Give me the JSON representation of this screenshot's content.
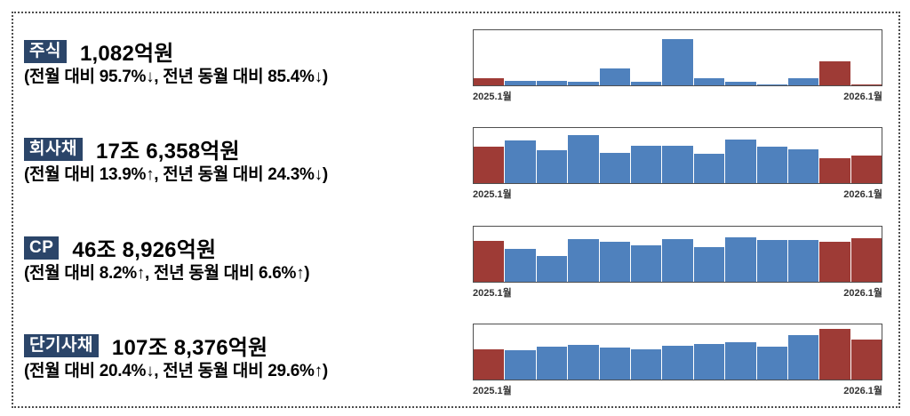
{
  "colors": {
    "badge_bg": "#2b4569",
    "badge_text": "#ffffff",
    "bar_blue": "#4f81bd",
    "bar_red": "#9e3b36",
    "chart_border": "#4f4f4f",
    "frame_border": "#4d4d4d",
    "text": "#000000",
    "axis_label": "#333333"
  },
  "sections": [
    {
      "badge": "주식",
      "amount": "1,082억원",
      "comparison": "(전월 대비 95.7%↓, 전년 동월 대비 85.4%↓)"
    },
    {
      "badge": "회사채",
      "amount": "17조 6,358억원",
      "comparison": "(전월 대비 13.9%↑, 전년 동월 대비 24.3%↓)"
    },
    {
      "badge": "CP",
      "amount": "46조 8,926억원",
      "comparison": "(전월 대비 8.2%↑, 전년 동월 대비 6.6%↑)"
    },
    {
      "badge": "단기사채",
      "amount": "107조 8,376억원",
      "comparison": "(전월 대비 20.4%↓, 전년 동월 대비 29.6%↑)"
    }
  ],
  "chart_data": [
    {
      "type": "bar",
      "x_start_label": "2025.1월",
      "x_end_label": "2026.1월",
      "categories": [
        "2025.1",
        "2025.2",
        "2025.3",
        "2025.4",
        "2025.5",
        "2025.6",
        "2025.7",
        "2025.8",
        "2025.9",
        "2025.10",
        "2025.11",
        "2025.12",
        "2026.1"
      ],
      "values": [
        13,
        8,
        8,
        6,
        31,
        6,
        84,
        13,
        6,
        2,
        13,
        44,
        2
      ],
      "y_axis": "none shown; values are relative bar heights in % of plot height",
      "bar_colors": [
        "red",
        "blue",
        "blue",
        "blue",
        "blue",
        "blue",
        "blue",
        "blue",
        "blue",
        "blue",
        "blue",
        "red",
        "red"
      ],
      "grid": false,
      "legend": false
    },
    {
      "type": "bar",
      "x_start_label": "2025.1월",
      "x_end_label": "2026.1월",
      "categories": [
        "2025.1",
        "2025.2",
        "2025.3",
        "2025.4",
        "2025.5",
        "2025.6",
        "2025.7",
        "2025.8",
        "2025.9",
        "2025.10",
        "2025.11",
        "2025.12",
        "2026.1"
      ],
      "values": [
        66,
        77,
        60,
        87,
        55,
        68,
        68,
        53,
        79,
        66,
        61,
        45,
        50
      ],
      "y_axis": "none shown; values are relative bar heights in % of plot height",
      "bar_colors": [
        "red",
        "blue",
        "blue",
        "blue",
        "blue",
        "blue",
        "blue",
        "blue",
        "blue",
        "blue",
        "blue",
        "red",
        "red"
      ],
      "grid": false,
      "legend": false
    },
    {
      "type": "bar",
      "x_start_label": "2025.1월",
      "x_end_label": "2026.1월",
      "categories": [
        "2025.1",
        "2025.2",
        "2025.3",
        "2025.4",
        "2025.5",
        "2025.6",
        "2025.7",
        "2025.8",
        "2025.9",
        "2025.10",
        "2025.11",
        "2025.12",
        "2026.1"
      ],
      "values": [
        74,
        60,
        47,
        77,
        73,
        66,
        77,
        63,
        81,
        76,
        76,
        73,
        79
      ],
      "y_axis": "none shown; values are relative bar heights in % of plot height",
      "bar_colors": [
        "red",
        "blue",
        "blue",
        "blue",
        "blue",
        "blue",
        "blue",
        "blue",
        "blue",
        "blue",
        "blue",
        "red",
        "red"
      ],
      "grid": false,
      "legend": false
    },
    {
      "type": "bar",
      "x_start_label": "2025.1월",
      "x_end_label": "2026.1월",
      "categories": [
        "2025.1",
        "2025.2",
        "2025.3",
        "2025.4",
        "2025.5",
        "2025.6",
        "2025.7",
        "2025.8",
        "2025.9",
        "2025.10",
        "2025.11",
        "2025.12",
        "2026.1"
      ],
      "values": [
        55,
        53,
        60,
        63,
        58,
        55,
        61,
        65,
        68,
        60,
        81,
        92,
        73
      ],
      "y_axis": "none shown; values are relative bar heights in % of plot height",
      "bar_colors": [
        "red",
        "blue",
        "blue",
        "blue",
        "blue",
        "blue",
        "blue",
        "blue",
        "blue",
        "blue",
        "blue",
        "red",
        "red"
      ],
      "grid": false,
      "legend": false
    }
  ]
}
